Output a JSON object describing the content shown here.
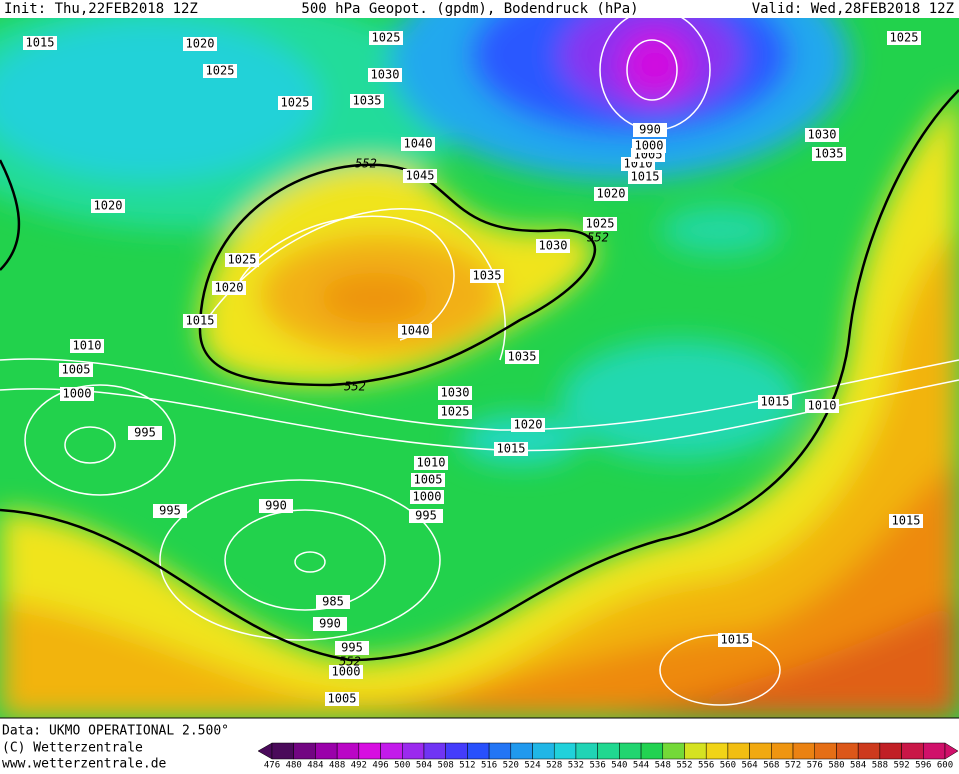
{
  "header": {
    "init": "Init: Thu,22FEB2018 12Z",
    "title": "500 hPa Geopot. (gpdm), Bodendruck (hPa)",
    "valid": "Valid: Wed,28FEB2018 12Z"
  },
  "map": {
    "isobar_labels": [
      "1015",
      "1020",
      "1025",
      "1025",
      "1030",
      "1025",
      "1035",
      "1040",
      "1045",
      "1020",
      "1025",
      "1020",
      "1015",
      "1010",
      "1005",
      "1000",
      "995",
      "1040",
      "1035",
      "1030",
      "1025",
      "1020",
      "1015",
      "1010",
      "1005",
      "1000",
      "990",
      "1030",
      "1035",
      "1025",
      "1035",
      "1030",
      "1025",
      "1020",
      "1015",
      "1015",
      "1010",
      "1010",
      "1005",
      "1000",
      "995",
      "990",
      "995",
      "1015",
      "985",
      "990",
      "995",
      "1000",
      "1005",
      "1015"
    ],
    "height_labels": [
      "552",
      "552",
      "552",
      "552"
    ]
  },
  "legend": {
    "ticks": [
      476,
      480,
      484,
      488,
      492,
      496,
      500,
      504,
      508,
      512,
      516,
      520,
      524,
      528,
      532,
      536,
      540,
      544,
      548,
      552,
      556,
      560,
      564,
      568,
      572,
      576,
      580,
      584,
      588,
      592,
      596,
      600
    ]
  },
  "footer": {
    "data": "Data: UKMO OPERATIONAL 2.500°",
    "copyright": "(C) Wetterzentrale",
    "url": "www.wetterzentrale.de"
  }
}
